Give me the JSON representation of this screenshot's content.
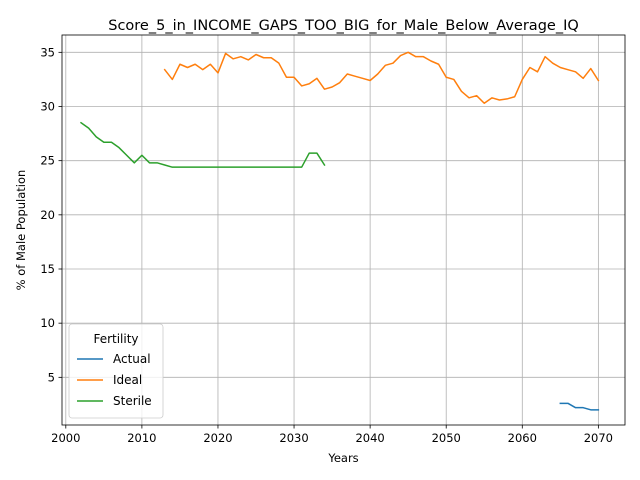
{
  "chart_data": {
    "type": "line",
    "title": "Score_5_in_INCOME_GAPS_TOO_BIG_for_Male_Below_Average_IQ",
    "xlabel": "Years",
    "ylabel": "% of Male Population",
    "xlim": [
      1999.5,
      2073.5
    ],
    "ylim": [
      0.6,
      36.6
    ],
    "xticks": [
      2000,
      2010,
      2020,
      2030,
      2040,
      2050,
      2060,
      2070
    ],
    "yticks": [
      5,
      10,
      15,
      20,
      25,
      30,
      35
    ],
    "grid": true,
    "legend": {
      "title": "Fertility",
      "placement": "lower-left"
    },
    "series": [
      {
        "name": "Actual",
        "color": "#1f77b4",
        "points": [
          [
            2065,
            2.6
          ],
          [
            2066,
            2.6
          ],
          [
            2067,
            2.2
          ],
          [
            2068,
            2.2
          ],
          [
            2069,
            2.0
          ],
          [
            2070,
            2.0
          ]
        ]
      },
      {
        "name": "Ideal",
        "color": "#ff7f0e",
        "points": [
          [
            2013,
            33.4
          ],
          [
            2014,
            32.5
          ],
          [
            2015,
            33.9
          ],
          [
            2016,
            33.6
          ],
          [
            2017,
            33.9
          ],
          [
            2018,
            33.4
          ],
          [
            2019,
            33.9
          ],
          [
            2020,
            33.1
          ],
          [
            2021,
            34.9
          ],
          [
            2022,
            34.4
          ],
          [
            2023,
            34.6
          ],
          [
            2024,
            34.3
          ],
          [
            2025,
            34.8
          ],
          [
            2026,
            34.5
          ],
          [
            2027,
            34.5
          ],
          [
            2028,
            34.0
          ],
          [
            2029,
            32.7
          ],
          [
            2030,
            32.7
          ],
          [
            2031,
            31.9
          ],
          [
            2032,
            32.1
          ],
          [
            2033,
            32.6
          ],
          [
            2034,
            31.6
          ],
          [
            2035,
            31.8
          ],
          [
            2036,
            32.2
          ],
          [
            2037,
            33.0
          ],
          [
            2038,
            32.8
          ],
          [
            2039,
            32.6
          ],
          [
            2040,
            32.4
          ],
          [
            2041,
            33.0
          ],
          [
            2042,
            33.8
          ],
          [
            2043,
            34.0
          ],
          [
            2044,
            34.7
          ],
          [
            2045,
            35.0
          ],
          [
            2046,
            34.6
          ],
          [
            2047,
            34.6
          ],
          [
            2048,
            34.2
          ],
          [
            2049,
            33.9
          ],
          [
            2050,
            32.7
          ],
          [
            2051,
            32.5
          ],
          [
            2052,
            31.4
          ],
          [
            2053,
            30.8
          ],
          [
            2054,
            31.0
          ],
          [
            2055,
            30.3
          ],
          [
            2056,
            30.8
          ],
          [
            2057,
            30.6
          ],
          [
            2058,
            30.7
          ],
          [
            2059,
            30.9
          ],
          [
            2060,
            32.5
          ],
          [
            2061,
            33.6
          ],
          [
            2062,
            33.2
          ],
          [
            2063,
            34.6
          ],
          [
            2064,
            34.0
          ],
          [
            2065,
            33.6
          ],
          [
            2066,
            33.4
          ],
          [
            2067,
            33.2
          ],
          [
            2068,
            32.6
          ],
          [
            2069,
            33.5
          ],
          [
            2070,
            32.4
          ]
        ]
      },
      {
        "name": "Sterile",
        "color": "#2ca02c",
        "points": [
          [
            2002,
            28.5
          ],
          [
            2003,
            28.0
          ],
          [
            2004,
            27.2
          ],
          [
            2005,
            26.7
          ],
          [
            2006,
            26.7
          ],
          [
            2007,
            26.2
          ],
          [
            2008,
            25.5
          ],
          [
            2009,
            24.8
          ],
          [
            2010,
            25.5
          ],
          [
            2011,
            24.8
          ],
          [
            2012,
            24.8
          ],
          [
            2013,
            24.6
          ],
          [
            2014,
            24.4
          ],
          [
            2015,
            24.4
          ],
          [
            2016,
            24.4
          ],
          [
            2017,
            24.4
          ],
          [
            2018,
            24.4
          ],
          [
            2019,
            24.4
          ],
          [
            2020,
            24.4
          ],
          [
            2021,
            24.4
          ],
          [
            2022,
            24.4
          ],
          [
            2023,
            24.4
          ],
          [
            2024,
            24.4
          ],
          [
            2025,
            24.4
          ],
          [
            2026,
            24.4
          ],
          [
            2027,
            24.4
          ],
          [
            2028,
            24.4
          ],
          [
            2029,
            24.4
          ],
          [
            2030,
            24.4
          ],
          [
            2031,
            24.4
          ],
          [
            2032,
            25.7
          ],
          [
            2033,
            25.7
          ],
          [
            2034,
            24.6
          ]
        ]
      }
    ]
  }
}
